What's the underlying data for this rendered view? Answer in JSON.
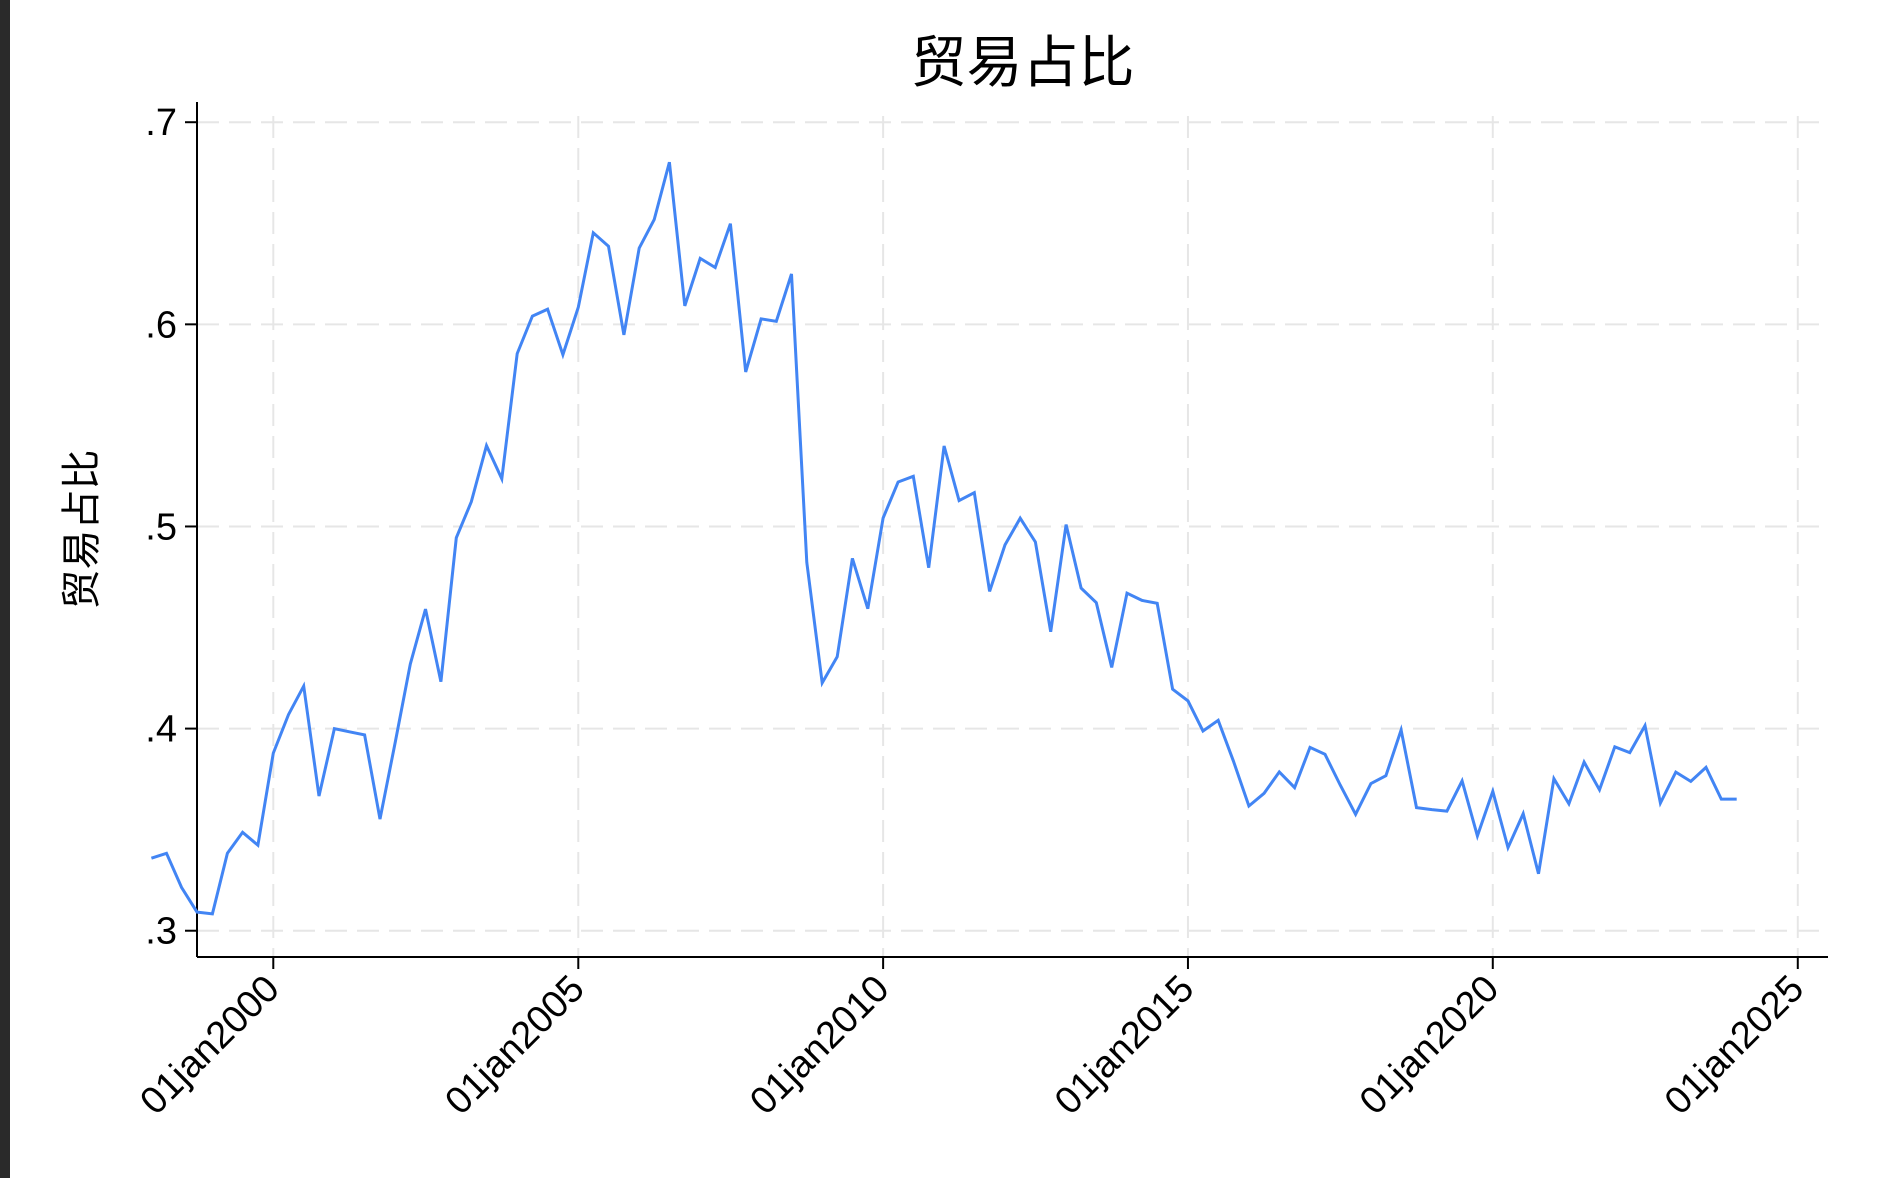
{
  "chart_data": {
    "type": "line",
    "title": "贸易占比",
    "ylabel": "贸易占比",
    "xlabel": "",
    "ylim": [
      0.287,
      0.71
    ],
    "xlim": [
      "1998-10-01",
      "2025-07-01"
    ],
    "yticks": [
      {
        "value": 0.3,
        "label": ".3"
      },
      {
        "value": 0.4,
        "label": ".4"
      },
      {
        "value": 0.5,
        "label": ".5"
      },
      {
        "value": 0.6,
        "label": ".6"
      },
      {
        "value": 0.7,
        "label": ".7"
      }
    ],
    "xticks": [
      {
        "value": "2000-01-01",
        "label": "01jan2000"
      },
      {
        "value": "2005-01-01",
        "label": "01jan2005"
      },
      {
        "value": "2010-01-01",
        "label": "01jan2010"
      },
      {
        "value": "2015-01-01",
        "label": "01jan2015"
      },
      {
        "value": "2020-01-01",
        "label": "01jan2020"
      },
      {
        "value": "2025-01-01",
        "label": "01jan2025"
      }
    ],
    "grid": true,
    "series": [
      {
        "color": "#4285f4",
        "x": [
          "1998-01-01",
          "1998-04-01",
          "1998-07-01",
          "1998-10-01",
          "1999-01-01",
          "1999-04-01",
          "1999-07-01",
          "1999-10-01",
          "2000-01-01",
          "2000-04-01",
          "2000-07-01",
          "2000-10-01",
          "2001-01-01",
          "2001-04-01",
          "2001-07-01",
          "2001-10-01",
          "2002-01-01",
          "2002-04-01",
          "2002-07-01",
          "2002-10-01",
          "2003-01-01",
          "2003-04-01",
          "2003-07-01",
          "2003-10-01",
          "2004-01-01",
          "2004-04-01",
          "2004-07-01",
          "2004-10-01",
          "2005-01-01",
          "2005-04-01",
          "2005-07-01",
          "2005-10-01",
          "2006-01-01",
          "2006-04-01",
          "2006-07-01",
          "2006-10-01",
          "2007-01-01",
          "2007-04-01",
          "2007-07-01",
          "2007-10-01",
          "2008-01-01",
          "2008-04-01",
          "2008-07-01",
          "2008-10-01",
          "2009-01-01",
          "2009-04-01",
          "2009-07-01",
          "2009-10-01",
          "2010-01-01",
          "2010-04-01",
          "2010-07-01",
          "2010-10-01",
          "2011-01-01",
          "2011-04-01",
          "2011-07-01",
          "2011-10-01",
          "2012-01-01",
          "2012-04-01",
          "2012-07-01",
          "2012-10-01",
          "2013-01-01",
          "2013-04-01",
          "2013-07-01",
          "2013-10-01",
          "2014-01-01",
          "2014-04-01",
          "2014-07-01",
          "2014-10-01",
          "2015-01-01",
          "2015-04-01",
          "2015-07-01",
          "2015-10-01",
          "2016-01-01",
          "2016-04-01",
          "2016-07-01",
          "2016-10-01",
          "2017-01-01",
          "2017-04-01",
          "2017-07-01",
          "2017-10-01",
          "2018-01-01",
          "2018-04-01",
          "2018-07-01",
          "2018-10-01",
          "2019-01-01",
          "2019-04-01",
          "2019-07-01",
          "2019-10-01",
          "2020-01-01",
          "2020-04-01",
          "2020-07-01",
          "2020-10-01",
          "2021-01-01",
          "2021-04-01",
          "2021-07-01",
          "2021-10-01",
          "2022-01-01",
          "2022-04-01",
          "2022-07-01",
          "2022-10-01",
          "2023-01-01",
          "2023-04-01",
          "2023-07-01",
          "2023-10-01",
          "2024-01-01"
        ],
        "values": [
          0.3359,
          0.3383,
          0.3214,
          0.3092,
          0.3083,
          0.3383,
          0.3487,
          0.3423,
          0.3879,
          0.4069,
          0.421,
          0.3666,
          0.4,
          0.3984,
          0.3969,
          0.3552,
          0.3934,
          0.4319,
          0.4591,
          0.4232,
          0.4944,
          0.5122,
          0.54,
          0.5236,
          0.5855,
          0.6041,
          0.6075,
          0.585,
          0.6085,
          0.6453,
          0.6386,
          0.5948,
          0.6377,
          0.6518,
          0.6802,
          0.6091,
          0.6326,
          0.6281,
          0.6498,
          0.5764,
          0.6027,
          0.6015,
          0.6249,
          0.4822,
          0.4226,
          0.4355,
          0.4842,
          0.4593,
          0.5042,
          0.522,
          0.5248,
          0.4796,
          0.5398,
          0.5128,
          0.5167,
          0.4679,
          0.4909,
          0.5041,
          0.4923,
          0.4479,
          0.5009,
          0.4695,
          0.4623,
          0.4303,
          0.467,
          0.4634,
          0.462,
          0.4195,
          0.4137,
          0.3988,
          0.4041,
          0.3838,
          0.3617,
          0.368,
          0.3786,
          0.3708,
          0.3907,
          0.3873,
          0.3721,
          0.3576,
          0.3728,
          0.3767,
          0.3993,
          0.3609,
          0.3599,
          0.3592,
          0.3741,
          0.3469,
          0.369,
          0.3411,
          0.3579,
          0.3282,
          0.3752,
          0.3628,
          0.3834,
          0.3697,
          0.391,
          0.3881,
          0.4015,
          0.3632,
          0.3785,
          0.3739,
          0.3808,
          0.3651,
          0.3651
        ]
      }
    ]
  }
}
